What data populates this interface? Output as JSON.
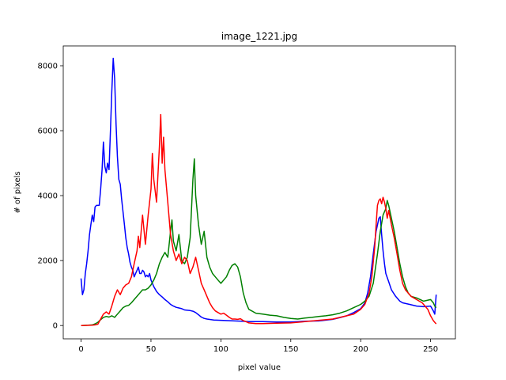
{
  "chart_data": {
    "type": "line",
    "title": "image_1221.jpg",
    "xlabel": "pixel value",
    "ylabel": "# of pixels",
    "xlim": [
      -12.75,
      267.75
    ],
    "ylim": [
      -410,
      8610
    ],
    "xticks": [
      0,
      50,
      100,
      150,
      200,
      250
    ],
    "yticks": [
      0,
      2000,
      4000,
      6000,
      8000
    ],
    "grid": false,
    "legend": "none",
    "series": [
      {
        "color": "#0000ff",
        "points": [
          [
            0,
            1450
          ],
          [
            1,
            950
          ],
          [
            2,
            1100
          ],
          [
            3,
            1600
          ],
          [
            4,
            1900
          ],
          [
            5,
            2300
          ],
          [
            6,
            2800
          ],
          [
            7,
            3100
          ],
          [
            8,
            3400
          ],
          [
            9,
            3200
          ],
          [
            10,
            3650
          ],
          [
            11,
            3700
          ],
          [
            12,
            3700
          ],
          [
            13,
            3700
          ],
          [
            14,
            4200
          ],
          [
            15,
            4800
          ],
          [
            16,
            5650
          ],
          [
            17,
            4900
          ],
          [
            18,
            4700
          ],
          [
            19,
            5000
          ],
          [
            20,
            4800
          ],
          [
            21,
            6000
          ],
          [
            22,
            7200
          ],
          [
            23,
            8230
          ],
          [
            24,
            7600
          ],
          [
            25,
            6200
          ],
          [
            26,
            5200
          ],
          [
            27,
            4500
          ],
          [
            28,
            4350
          ],
          [
            29,
            3900
          ],
          [
            30,
            3500
          ],
          [
            31,
            3100
          ],
          [
            32,
            2700
          ],
          [
            33,
            2400
          ],
          [
            34,
            2200
          ],
          [
            35,
            1950
          ],
          [
            36,
            1800
          ],
          [
            37,
            1700
          ],
          [
            38,
            1500
          ],
          [
            39,
            1600
          ],
          [
            40,
            1700
          ],
          [
            41,
            1800
          ],
          [
            42,
            1600
          ],
          [
            43,
            1600
          ],
          [
            44,
            1700
          ],
          [
            45,
            1650
          ],
          [
            46,
            1500
          ],
          [
            47,
            1550
          ],
          [
            48,
            1500
          ],
          [
            49,
            1600
          ],
          [
            50,
            1400
          ],
          [
            52,
            1200
          ],
          [
            54,
            1050
          ],
          [
            56,
            950
          ],
          [
            58,
            880
          ],
          [
            60,
            800
          ],
          [
            62,
            730
          ],
          [
            64,
            650
          ],
          [
            66,
            600
          ],
          [
            68,
            560
          ],
          [
            70,
            540
          ],
          [
            72,
            520
          ],
          [
            74,
            480
          ],
          [
            76,
            470
          ],
          [
            78,
            460
          ],
          [
            80,
            440
          ],
          [
            82,
            400
          ],
          [
            84,
            330
          ],
          [
            86,
            260
          ],
          [
            88,
            220
          ],
          [
            90,
            200
          ],
          [
            95,
            170
          ],
          [
            100,
            160
          ],
          [
            105,
            150
          ],
          [
            110,
            140
          ],
          [
            115,
            130
          ],
          [
            120,
            120
          ],
          [
            130,
            120
          ],
          [
            140,
            110
          ],
          [
            150,
            110
          ],
          [
            160,
            130
          ],
          [
            170,
            140
          ],
          [
            180,
            190
          ],
          [
            185,
            240
          ],
          [
            190,
            300
          ],
          [
            195,
            400
          ],
          [
            200,
            520
          ],
          [
            203,
            700
          ],
          [
            205,
            1000
          ],
          [
            207,
            1500
          ],
          [
            209,
            2200
          ],
          [
            211,
            2900
          ],
          [
            213,
            3300
          ],
          [
            214,
            3350
          ],
          [
            215,
            2800
          ],
          [
            216,
            2300
          ],
          [
            217,
            1900
          ],
          [
            218,
            1600
          ],
          [
            220,
            1350
          ],
          [
            222,
            1100
          ],
          [
            225,
            900
          ],
          [
            228,
            750
          ],
          [
            230,
            700
          ],
          [
            235,
            650
          ],
          [
            240,
            600
          ],
          [
            245,
            580
          ],
          [
            250,
            600
          ],
          [
            252,
            450
          ],
          [
            253,
            350
          ],
          [
            254,
            950
          ]
        ]
      },
      {
        "color": "#008000",
        "points": [
          [
            0,
            0
          ],
          [
            5,
            10
          ],
          [
            8,
            20
          ],
          [
            10,
            50
          ],
          [
            12,
            100
          ],
          [
            14,
            180
          ],
          [
            16,
            250
          ],
          [
            18,
            280
          ],
          [
            20,
            260
          ],
          [
            22,
            300
          ],
          [
            24,
            250
          ],
          [
            26,
            350
          ],
          [
            28,
            450
          ],
          [
            30,
            550
          ],
          [
            32,
            600
          ],
          [
            34,
            620
          ],
          [
            36,
            700
          ],
          [
            38,
            800
          ],
          [
            40,
            900
          ],
          [
            42,
            1000
          ],
          [
            44,
            1100
          ],
          [
            46,
            1100
          ],
          [
            48,
            1150
          ],
          [
            50,
            1250
          ],
          [
            52,
            1400
          ],
          [
            54,
            1600
          ],
          [
            56,
            1900
          ],
          [
            58,
            2100
          ],
          [
            60,
            2250
          ],
          [
            62,
            2100
          ],
          [
            64,
            2900
          ],
          [
            65,
            3250
          ],
          [
            66,
            2600
          ],
          [
            68,
            2300
          ],
          [
            70,
            2800
          ],
          [
            72,
            2000
          ],
          [
            74,
            1900
          ],
          [
            76,
            2100
          ],
          [
            78,
            2700
          ],
          [
            80,
            4500
          ],
          [
            81,
            5130
          ],
          [
            82,
            4000
          ],
          [
            84,
            3100
          ],
          [
            86,
            2500
          ],
          [
            88,
            2900
          ],
          [
            90,
            2100
          ],
          [
            92,
            1800
          ],
          [
            94,
            1600
          ],
          [
            96,
            1500
          ],
          [
            98,
            1400
          ],
          [
            100,
            1300
          ],
          [
            102,
            1400
          ],
          [
            104,
            1500
          ],
          [
            106,
            1700
          ],
          [
            108,
            1850
          ],
          [
            110,
            1900
          ],
          [
            112,
            1800
          ],
          [
            114,
            1500
          ],
          [
            116,
            1000
          ],
          [
            118,
            700
          ],
          [
            120,
            500
          ],
          [
            125,
            380
          ],
          [
            130,
            350
          ],
          [
            135,
            320
          ],
          [
            140,
            300
          ],
          [
            145,
            250
          ],
          [
            150,
            220
          ],
          [
            155,
            200
          ],
          [
            160,
            230
          ],
          [
            165,
            250
          ],
          [
            170,
            280
          ],
          [
            175,
            300
          ],
          [
            180,
            330
          ],
          [
            185,
            380
          ],
          [
            190,
            450
          ],
          [
            195,
            550
          ],
          [
            200,
            650
          ],
          [
            203,
            750
          ],
          [
            206,
            900
          ],
          [
            209,
            1300
          ],
          [
            212,
            2200
          ],
          [
            214,
            2900
          ],
          [
            216,
            3400
          ],
          [
            218,
            3600
          ],
          [
            219,
            3850
          ],
          [
            220,
            3700
          ],
          [
            222,
            3300
          ],
          [
            224,
            2900
          ],
          [
            226,
            2400
          ],
          [
            228,
            1900
          ],
          [
            230,
            1500
          ],
          [
            232,
            1200
          ],
          [
            234,
            1000
          ],
          [
            236,
            900
          ],
          [
            240,
            850
          ],
          [
            245,
            750
          ],
          [
            250,
            800
          ],
          [
            252,
            700
          ],
          [
            253,
            600
          ],
          [
            254,
            550
          ]
        ]
      },
      {
        "color": "#ff0000",
        "points": [
          [
            0,
            0
          ],
          [
            4,
            5
          ],
          [
            8,
            10
          ],
          [
            10,
            20
          ],
          [
            12,
            40
          ],
          [
            14,
            200
          ],
          [
            16,
            350
          ],
          [
            18,
            420
          ],
          [
            20,
            350
          ],
          [
            22,
            600
          ],
          [
            24,
            900
          ],
          [
            26,
            1100
          ],
          [
            28,
            950
          ],
          [
            30,
            1150
          ],
          [
            32,
            1250
          ],
          [
            34,
            1300
          ],
          [
            36,
            1500
          ],
          [
            38,
            1900
          ],
          [
            40,
            2300
          ],
          [
            41,
            2750
          ],
          [
            42,
            2400
          ],
          [
            44,
            3400
          ],
          [
            46,
            2500
          ],
          [
            48,
            3400
          ],
          [
            50,
            4200
          ],
          [
            51,
            5300
          ],
          [
            52,
            4500
          ],
          [
            54,
            3800
          ],
          [
            56,
            5500
          ],
          [
            57,
            6500
          ],
          [
            58,
            5000
          ],
          [
            59,
            5800
          ],
          [
            60,
            4800
          ],
          [
            62,
            3800
          ],
          [
            64,
            2800
          ],
          [
            66,
            2300
          ],
          [
            68,
            2000
          ],
          [
            70,
            2200
          ],
          [
            72,
            1900
          ],
          [
            74,
            2100
          ],
          [
            76,
            2000
          ],
          [
            78,
            1600
          ],
          [
            80,
            1800
          ],
          [
            82,
            2100
          ],
          [
            84,
            1700
          ],
          [
            86,
            1300
          ],
          [
            88,
            1100
          ],
          [
            90,
            900
          ],
          [
            92,
            700
          ],
          [
            94,
            550
          ],
          [
            96,
            450
          ],
          [
            98,
            400
          ],
          [
            100,
            350
          ],
          [
            102,
            380
          ],
          [
            104,
            320
          ],
          [
            106,
            250
          ],
          [
            108,
            200
          ],
          [
            110,
            200
          ],
          [
            112,
            190
          ],
          [
            114,
            210
          ],
          [
            116,
            150
          ],
          [
            118,
            120
          ],
          [
            120,
            80
          ],
          [
            125,
            60
          ],
          [
            130,
            60
          ],
          [
            140,
            70
          ],
          [
            150,
            80
          ],
          [
            160,
            120
          ],
          [
            170,
            160
          ],
          [
            180,
            200
          ],
          [
            190,
            300
          ],
          [
            195,
            350
          ],
          [
            200,
            500
          ],
          [
            203,
            650
          ],
          [
            206,
            1000
          ],
          [
            208,
            1500
          ],
          [
            210,
            2400
          ],
          [
            211,
            3100
          ],
          [
            212,
            3700
          ],
          [
            213,
            3850
          ],
          [
            214,
            3900
          ],
          [
            215,
            3750
          ],
          [
            216,
            3950
          ],
          [
            217,
            3800
          ],
          [
            218,
            3600
          ],
          [
            219,
            3300
          ],
          [
            220,
            3550
          ],
          [
            222,
            3100
          ],
          [
            224,
            2700
          ],
          [
            226,
            2200
          ],
          [
            228,
            1700
          ],
          [
            230,
            1300
          ],
          [
            232,
            1100
          ],
          [
            234,
            1000
          ],
          [
            236,
            900
          ],
          [
            240,
            800
          ],
          [
            244,
            700
          ],
          [
            248,
            500
          ],
          [
            250,
            300
          ],
          [
            252,
            150
          ],
          [
            253,
            100
          ],
          [
            254,
            50
          ]
        ]
      }
    ]
  }
}
